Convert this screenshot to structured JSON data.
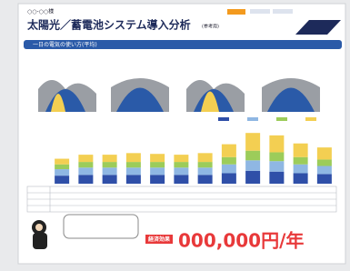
{
  "header": {
    "customer": "○○-○○様",
    "title": "太陽光／蓄電池システム導入分析",
    "note": "(参考用)"
  },
  "section": {
    "title": "一日の電気の使い方(平均)"
  },
  "summary": {
    "label": "経済効果",
    "amount": "000,000円/年"
  },
  "chart_data": {
    "type": "bar",
    "stacked": true,
    "categories": [
      null,
      null,
      null,
      null,
      null,
      null,
      null,
      null,
      null,
      null,
      null,
      null
    ],
    "ylim": [
      0,
      70
    ],
    "series": [
      {
        "color": "#2f4fa8",
        "values": [
          10,
          11,
          11,
          11,
          11,
          11,
          11,
          13,
          16,
          15,
          13,
          12
        ]
      },
      {
        "color": "#8fb7e3",
        "values": [
          8,
          9,
          9,
          9,
          9,
          9,
          9,
          11,
          13,
          13,
          11,
          10
        ]
      },
      {
        "color": "#9ccc5a",
        "values": [
          6,
          7,
          7,
          7,
          7,
          7,
          7,
          9,
          12,
          11,
          9,
          8
        ]
      },
      {
        "color": "#f3cf52",
        "values": [
          7,
          9,
          9,
          11,
          10,
          9,
          11,
          16,
          22,
          21,
          17,
          15
        ]
      }
    ]
  }
}
